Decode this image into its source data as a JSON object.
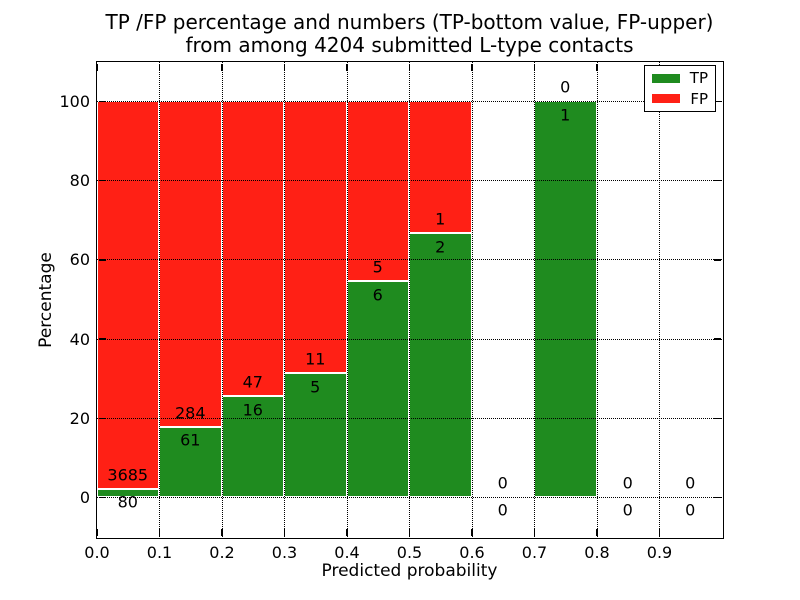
{
  "chart_data": {
    "type": "bar",
    "stacked": true,
    "title_lines": [
      "TP /FP percentage and numbers (TP-bottom value, FP-upper)",
      "from among 4204 submitted L-type contacts"
    ],
    "xlabel": "Predicted probability",
    "ylabel": "Percentage",
    "xlim": [
      0.0,
      1.0
    ],
    "ylim": [
      -10,
      110
    ],
    "xtick_labels": [
      "0.0",
      "0.1",
      "0.2",
      "0.3",
      "0.4",
      "0.5",
      "0.6",
      "0.7",
      "0.8",
      "0.9"
    ],
    "ytick_labels": [
      "0",
      "20",
      "40",
      "60",
      "80",
      "100"
    ],
    "grid": true,
    "grid_style": "dotted",
    "bar_edge_color": "#ffffff",
    "legend_position": "upper right",
    "legend": [
      {
        "label": "TP",
        "color": "#1f8b1f"
      },
      {
        "label": "FP",
        "color": "#ff2015"
      }
    ],
    "bins": [
      {
        "x0": 0.0,
        "x1": 0.1,
        "tp": 80,
        "fp": 3685
      },
      {
        "x0": 0.1,
        "x1": 0.2,
        "tp": 61,
        "fp": 284
      },
      {
        "x0": 0.2,
        "x1": 0.3,
        "tp": 16,
        "fp": 47
      },
      {
        "x0": 0.3,
        "x1": 0.4,
        "tp": 5,
        "fp": 11
      },
      {
        "x0": 0.4,
        "x1": 0.5,
        "tp": 6,
        "fp": 5
      },
      {
        "x0": 0.5,
        "x1": 0.6,
        "tp": 2,
        "fp": 1
      },
      {
        "x0": 0.6,
        "x1": 0.7,
        "tp": 0,
        "fp": 0
      },
      {
        "x0": 0.7,
        "x1": 0.8,
        "tp": 1,
        "fp": 0
      },
      {
        "x0": 0.8,
        "x1": 0.9,
        "tp": 0,
        "fp": 0
      },
      {
        "x0": 0.9,
        "x1": 1.0,
        "tp": 0,
        "fp": 0
      }
    ]
  }
}
